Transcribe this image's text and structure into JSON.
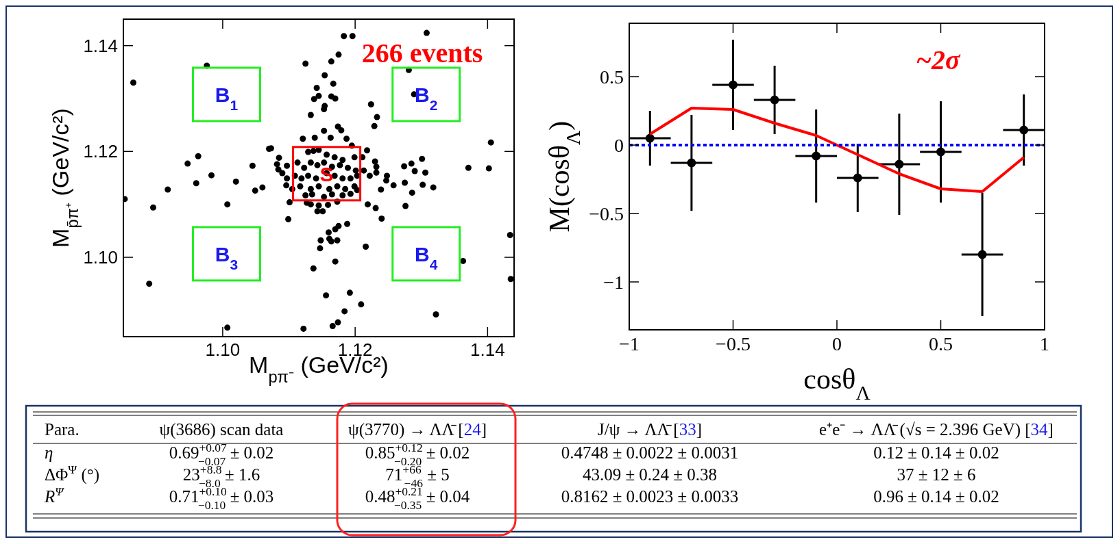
{
  "chart_data": [
    {
      "type": "scatter",
      "xlabel": "M$_{pπ⁻}$ (GeV/c²)",
      "ylabel": "M$_{p̄π⁺}$ (GeV/c²)",
      "color": "#000000",
      "marker": "circle",
      "xlim": [
        1.085,
        1.144
      ],
      "ylim": [
        1.085,
        1.145
      ],
      "xticks": [
        {
          "value": 1.1,
          "label": "1.10"
        },
        {
          "value": 1.12,
          "label": "1.12"
        },
        {
          "value": 1.14,
          "label": "1.14"
        }
      ],
      "yticks": [
        {
          "value": 1.1,
          "label": "1.10"
        },
        {
          "value": 1.12,
          "label": "1.12"
        },
        {
          "value": 1.14,
          "label": "1.14"
        }
      ],
      "x": [
        1.1183,
        1.1196,
        1.1308,
        1.0976,
        1.0865,
        1.1125,
        1.1164,
        1.1175,
        1.1154,
        1.1167,
        1.1142,
        1.1145,
        1.1138,
        1.1164,
        1.117,
        1.1154,
        1.1153,
        1.1133,
        1.1281,
        1.1289,
        1.1224,
        1.1233,
        1.1229,
        1.1405,
        1.107,
        1.1073,
        1.0963,
        1.0947,
        1.1045,
        1.1085,
        1.0983,
        1.096,
        1.102,
        1.0917,
        1.1049,
        1.106,
        1.0852,
        1.0895,
        1.1007,
        1.1101,
        1.1099,
        1.1219,
        1.1231,
        1.124,
        1.1239,
        1.1247,
        1.1248,
        1.1258,
        1.1274,
        1.1285,
        1.129,
        1.1301,
        1.1306,
        1.1275,
        1.1286,
        1.1302,
        1.1318,
        1.1276,
        1.1371,
        1.1402,
        1.1434,
        1.1363,
        1.1435,
        1.0889,
        1.116,
        1.117,
        1.1175,
        1.1188,
        1.1148,
        1.1147,
        1.1161,
        1.1164,
        1.1173,
        1.1216,
        1.117,
        1.1137,
        1.1156,
        1.1192,
        1.1209,
        1.1184,
        1.1174,
        1.1166,
        1.1122,
        1.1007,
        1.1322,
        1.1218,
        1.123,
        1.1232,
        1.1232,
        1.1222,
        1.1121,
        1.1139,
        1.1153,
        1.1163,
        1.1174,
        1.1179,
        1.1187,
        1.1195,
        1.1137,
        1.1129,
        1.1145,
        1.1157,
        1.1169,
        1.1181,
        1.1199,
        1.1211,
        1.1113,
        1.1123,
        1.1133,
        1.1143,
        1.1153,
        1.1165,
        1.1177,
        1.1189,
        1.1201,
        1.1109,
        1.1119,
        1.1129,
        1.1141,
        1.1157,
        1.1169,
        1.1181,
        1.1193,
        1.1203,
        1.1213,
        1.1097,
        1.1096,
        1.1105,
        1.1117,
        1.1133,
        1.1145,
        1.1161,
        1.1173,
        1.1185,
        1.1199,
        1.1203,
        1.1125,
        1.1135,
        1.1153,
        1.1165,
        1.1181,
        1.1193,
        1.1127,
        1.1133,
        1.1145,
        1.1159,
        1.1173,
        1.1143,
        1.1151,
        1.1084,
        1.109,
        1.1082,
        1.1097
      ],
      "values": [
        1.1418,
        1.1418,
        1.1424,
        1.1362,
        1.133,
        1.1366,
        1.137,
        1.1383,
        1.1344,
        1.1328,
        1.132,
        1.1305,
        1.1299,
        1.1304,
        1.13,
        1.1286,
        1.128,
        1.1269,
        1.1354,
        1.1308,
        1.1289,
        1.1265,
        1.1248,
        1.1217,
        1.1205,
        1.1206,
        1.1191,
        1.1177,
        1.1173,
        1.1188,
        1.1155,
        1.114,
        1.1143,
        1.1128,
        1.1126,
        1.1132,
        1.111,
        1.1094,
        1.11,
        1.1104,
        1.1072,
        1.11,
        1.1093,
        1.1073,
        1.1128,
        1.1145,
        1.1154,
        1.1136,
        1.1172,
        1.1177,
        1.1163,
        1.1186,
        1.116,
        1.1141,
        1.1122,
        1.1137,
        1.1132,
        1.1097,
        1.1169,
        1.1168,
        1.1042,
        1.0993,
        1.0959,
        1.095,
        1.1047,
        1.1053,
        1.1059,
        1.1063,
        1.1032,
        1.1017,
        1.1035,
        1.103,
        1.1032,
        1.102,
        1.0992,
        1.0979,
        1.0928,
        1.0933,
        1.0911,
        1.0898,
        1.0877,
        1.087,
        1.0865,
        1.0867,
        1.0892,
        1.1202,
        1.1181,
        1.1171,
        1.116,
        1.1154,
        1.1224,
        1.1226,
        1.1239,
        1.1226,
        1.1247,
        1.124,
        1.1224,
        1.1211,
        1.1201,
        1.1199,
        1.1203,
        1.1194,
        1.1189,
        1.1184,
        1.1189,
        1.1189,
        1.1179,
        1.1169,
        1.1179,
        1.1174,
        1.1179,
        1.1171,
        1.1174,
        1.1169,
        1.1164,
        1.1154,
        1.1149,
        1.1154,
        1.1149,
        1.1159,
        1.1154,
        1.1149,
        1.1149,
        1.1154,
        1.1164,
        1.1149,
        1.1136,
        1.1129,
        1.1134,
        1.1129,
        1.1134,
        1.1129,
        1.1134,
        1.1129,
        1.1134,
        1.1127,
        1.1117,
        1.1119,
        1.1114,
        1.1119,
        1.1117,
        1.112,
        1.1103,
        1.11,
        1.1098,
        1.1099,
        1.1105,
        1.1087,
        1.1087,
        1.1166,
        1.1159,
        1.1176,
        1.1173
      ],
      "annotations": [
        "266 events",
        {
          "text": "S",
          "x": 1.1157,
          "y": 1.1158
        },
        "B$_{1}$",
        "B$_{2}$",
        "B$_{3}$",
        "B$_{4}$"
      ]
    },
    {
      "type": "scatter",
      "xlabel": "cosθ$_{Λ}$",
      "ylabel": "M(cosθ$_{Λ}$)",
      "xlim": [
        -1,
        1
      ],
      "ylim": [
        -1.35,
        0.89
      ],
      "xticks": [
        -1,
        -0.5,
        0,
        0.5,
        1
      ],
      "yticks": [
        -1,
        -0.5,
        0,
        0.5
      ],
      "annotations": [
        "~2σ"
      ],
      "series": [
        {
          "type": "scatter",
          "marker": "circle",
          "color": "#000000",
          "x": [
            -0.9,
            -0.7,
            -0.5,
            -0.3,
            -0.1,
            0.1,
            0.3,
            0.5,
            0.7,
            0.9
          ],
          "values": [
            0.05,
            -0.13,
            0.44,
            0.33,
            -0.08,
            -0.24,
            -0.14,
            -0.05,
            -0.8,
            0.11
          ],
          "errors": [
            0.2,
            0.35,
            0.33,
            0.25,
            0.34,
            0.25,
            0.37,
            0.37,
            0.45,
            0.26
          ],
          "xerrors": [
            0.1,
            0.1,
            0.1,
            0.1,
            0.1,
            0.1,
            0.1,
            0.1,
            0.1,
            0.1
          ]
        },
        {
          "type": "line",
          "color": "#ff0000",
          "x": [
            -0.9,
            -0.7,
            -0.5,
            -0.3,
            -0.1,
            0.1,
            0.3,
            0.5,
            0.7,
            0.9
          ],
          "values": [
            0.08,
            0.27,
            0.26,
            0.16,
            0.07,
            -0.07,
            -0.21,
            -0.32,
            -0.34,
            -0.09
          ]
        },
        {
          "type": "line",
          "color": "#0000ff",
          "line_style": "dotted",
          "x": [
            -1,
            -0.8,
            -0.6,
            -0.4,
            -0.2,
            0,
            0.2,
            0.4,
            0.6,
            0.8,
            1
          ],
          "values": [
            0,
            0,
            0,
            0,
            0,
            0,
            0,
            0,
            0,
            0,
            0
          ]
        }
      ]
    },
    {
      "type": "other",
      "categories": [
        "Para.",
        "ψ(3686) scan data",
        "ψ(3770) → ΛΛ̄ [24]",
        "J/ψ → ΛΛ̄ [33]",
        "e⁺e⁻ → ΛΛ̄ (√s = 2.396 GeV) [34]"
      ],
      "y_categories": [
        "η",
        "ΔΦ$^{Ψ}$ (°)",
        "R$^{Ψ}$"
      ],
      "cell_labels": [
        [
          "0.69$^{+0.07}$$_{−0.07}$ ± 0.02",
          "0.85$^{+0.12}$$_{−0.20}$ ± 0.02",
          "0.4748 ± 0.0022 ± 0.0031",
          "0.12 ± 0.14 ± 0.02"
        ],
        [
          "23$^{+8.8}$$_{−8.0}$ ± 1.6",
          "71$^{+66}$$_{−46}$ ± 5",
          "43.09 ± 0.24 ± 0.38",
          "37 ± 12 ± 6"
        ],
        [
          "0.71$^{+0.10}$$_{−0.10}$ ± 0.03",
          "0.48$^{+0.21}$$_{−0.35}$ ± 0.04",
          "0.8162 ± 0.0023 ± 0.0033",
          "0.96 ± 0.14 ± 0.02"
        ]
      ]
    }
  ]
}
